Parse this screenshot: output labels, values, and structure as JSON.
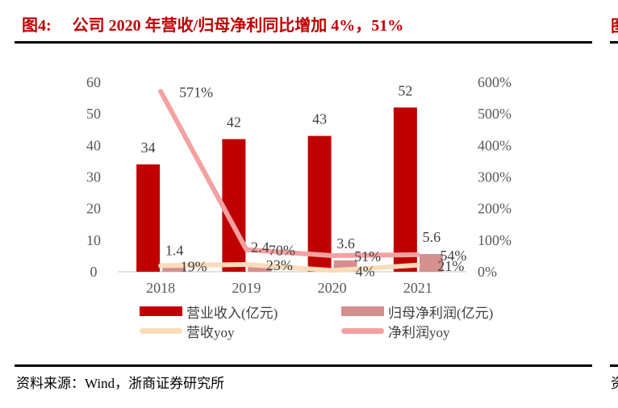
{
  "figure": {
    "title_prefix": "图4:",
    "title": "公司 2020 年营收/归母净利同比增加 4%，51%",
    "source": "资料来源：Wind，浙商证券研究所",
    "edge_fragment_top": "图",
    "edge_fragment_bottom": "资"
  },
  "colors": {
    "title": "#C00000",
    "axis_text": "#595959",
    "data_label": "#3F3F3F",
    "baseline": "#D9D9D9",
    "divider": "#000000"
  },
  "chart_data": {
    "type": "bar+line",
    "categories": [
      "2018",
      "2019",
      "2020",
      "2021"
    ],
    "series": [
      {
        "name": "营业收入(亿元)",
        "kind": "bar",
        "axis": "left",
        "color": "#C00000",
        "values": [
          34,
          42,
          43,
          52
        ],
        "labels": [
          "34",
          "42",
          "43",
          "52"
        ]
      },
      {
        "name": "归母净利润(亿元)",
        "kind": "bar",
        "axis": "left",
        "color": "#D48F8F",
        "values": [
          1.4,
          2.4,
          3.6,
          5.6
        ],
        "labels": [
          "1.4",
          "2.4",
          "3.6",
          "5.6"
        ]
      },
      {
        "name": "营收yoy",
        "kind": "line",
        "axis": "right",
        "color": "#FADCBA",
        "values": [
          19,
          23,
          4,
          21
        ],
        "labels": [
          "19%",
          "23%",
          "4%",
          "21%"
        ]
      },
      {
        "name": "净利润yoy",
        "kind": "line",
        "axis": "right",
        "color": "#F4A1A1",
        "values": [
          571,
          70,
          51,
          54
        ],
        "labels": [
          "571%",
          "70%",
          "51%",
          "54%"
        ]
      }
    ],
    "left_axis": {
      "min": 0,
      "max": 60,
      "step": 10,
      "tick_labels": [
        "0",
        "10",
        "20",
        "30",
        "40",
        "50",
        "60"
      ]
    },
    "right_axis": {
      "min": 0,
      "max": 600,
      "step": 100,
      "tick_labels": [
        "0%",
        "100%",
        "200%",
        "300%",
        "400%",
        "500%",
        "600%"
      ]
    },
    "grid": false,
    "legend_position": "bottom"
  }
}
